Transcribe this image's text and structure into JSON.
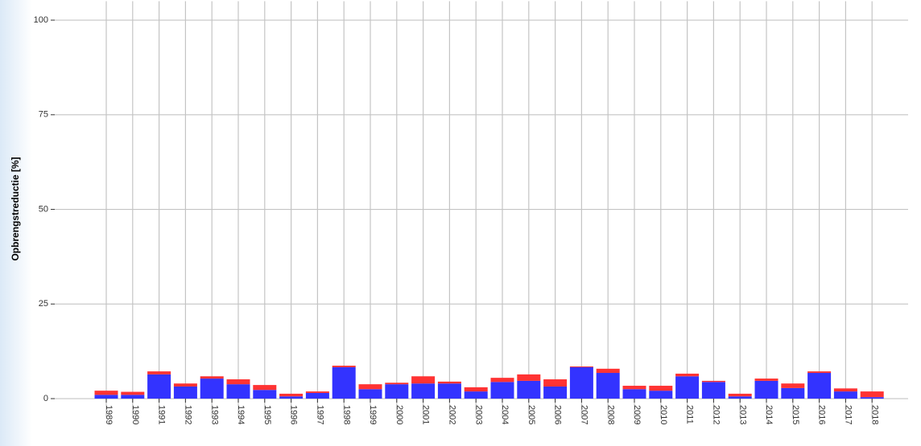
{
  "chart_data": {
    "type": "stacked-bar",
    "y_label": "Opbrengstreductie [%]",
    "categories": [
      "1989",
      "1990",
      "1991",
      "1992",
      "1993",
      "1994",
      "1995",
      "1996",
      "1997",
      "1998",
      "1999",
      "2000",
      "2001",
      "2002",
      "2003",
      "2004",
      "2005",
      "2006",
      "2007",
      "2008",
      "2009",
      "2010",
      "2011",
      "2012",
      "2013",
      "2014",
      "2015",
      "2016",
      "2017",
      "2018"
    ],
    "series": [
      {
        "color": "#3333ff",
        "values": [
          1.0,
          1.0,
          6.4,
          3.2,
          5.3,
          3.8,
          2.3,
          0.6,
          1.5,
          8.3,
          2.5,
          3.8,
          4.0,
          4.0,
          1.9,
          4.4,
          4.7,
          3.2,
          8.3,
          6.8,
          2.5,
          2.1,
          5.9,
          4.4,
          0.6,
          4.7,
          2.8,
          6.8,
          1.9,
          0.4
        ]
      },
      {
        "color": "#ff3333",
        "values": [
          1.1,
          0.8,
          0.8,
          0.8,
          0.6,
          1.3,
          1.3,
          0.7,
          0.4,
          0.4,
          1.3,
          0.4,
          1.9,
          0.5,
          1.1,
          1.1,
          1.7,
          1.9,
          0.2,
          1.1,
          0.9,
          1.3,
          0.7,
          0.3,
          0.7,
          0.6,
          1.2,
          0.4,
          0.8,
          1.5
        ]
      }
    ],
    "ylim": [
      -5,
      105
    ],
    "yticks": [
      0,
      25,
      50,
      75,
      100
    ],
    "grid": true
  }
}
